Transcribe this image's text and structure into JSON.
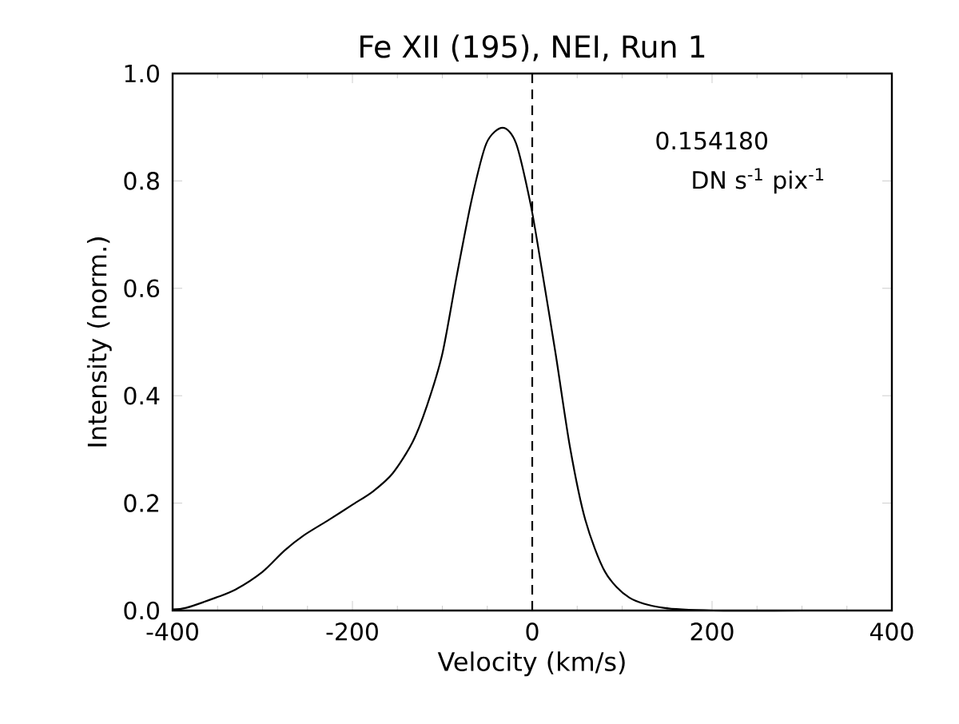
{
  "chart_data": {
    "type": "line",
    "title": "Fe XII (195), NEI, Run 1",
    "xlabel": "Velocity (km/s)",
    "ylabel": "Intensity (norm.)",
    "annotations": [
      "0.154180",
      "DN s$^{-1}$ pix$^{-1}$"
    ],
    "x": [
      -400,
      -385,
      -352,
      -330,
      -300,
      -276,
      -254,
      -226,
      -199,
      -177,
      -155,
      -133,
      -117,
      -100,
      -84,
      -67,
      -51,
      -33,
      -18,
      -2,
      9,
      26,
      42,
      59,
      81,
      108,
      146,
      201,
      300,
      400
    ],
    "series": [
      {
        "color": "#000000",
        "values": [
          0.002,
          0.005,
          0.024,
          0.039,
          0.072,
          0.111,
          0.14,
          0.169,
          0.198,
          0.222,
          0.256,
          0.314,
          0.382,
          0.478,
          0.623,
          0.768,
          0.87,
          0.899,
          0.87,
          0.758,
          0.652,
          0.478,
          0.304,
          0.169,
          0.072,
          0.024,
          0.005,
          0,
          0,
          0
        ]
      }
    ],
    "xlim": [
      -400,
      400
    ],
    "ylim": [
      0,
      1.0
    ],
    "xticks": [
      -400,
      -200,
      0,
      200,
      400
    ],
    "yticks": [
      {
        "value": 0,
        "label": "0.0"
      },
      {
        "value": 0.2,
        "label": "0.2"
      },
      {
        "value": 0.4,
        "label": "0.4"
      },
      {
        "value": 0.6,
        "label": "0.6"
      },
      {
        "value": 0.8,
        "label": "0.8"
      },
      {
        "value": 1.0,
        "label": "1.0"
      }
    ],
    "ref_lines": [
      {
        "axis": "x",
        "value": 0,
        "line_style": "dashed",
        "color": "#000000"
      }
    ],
    "grid": false,
    "marker": "none",
    "line_style": "solid"
  }
}
